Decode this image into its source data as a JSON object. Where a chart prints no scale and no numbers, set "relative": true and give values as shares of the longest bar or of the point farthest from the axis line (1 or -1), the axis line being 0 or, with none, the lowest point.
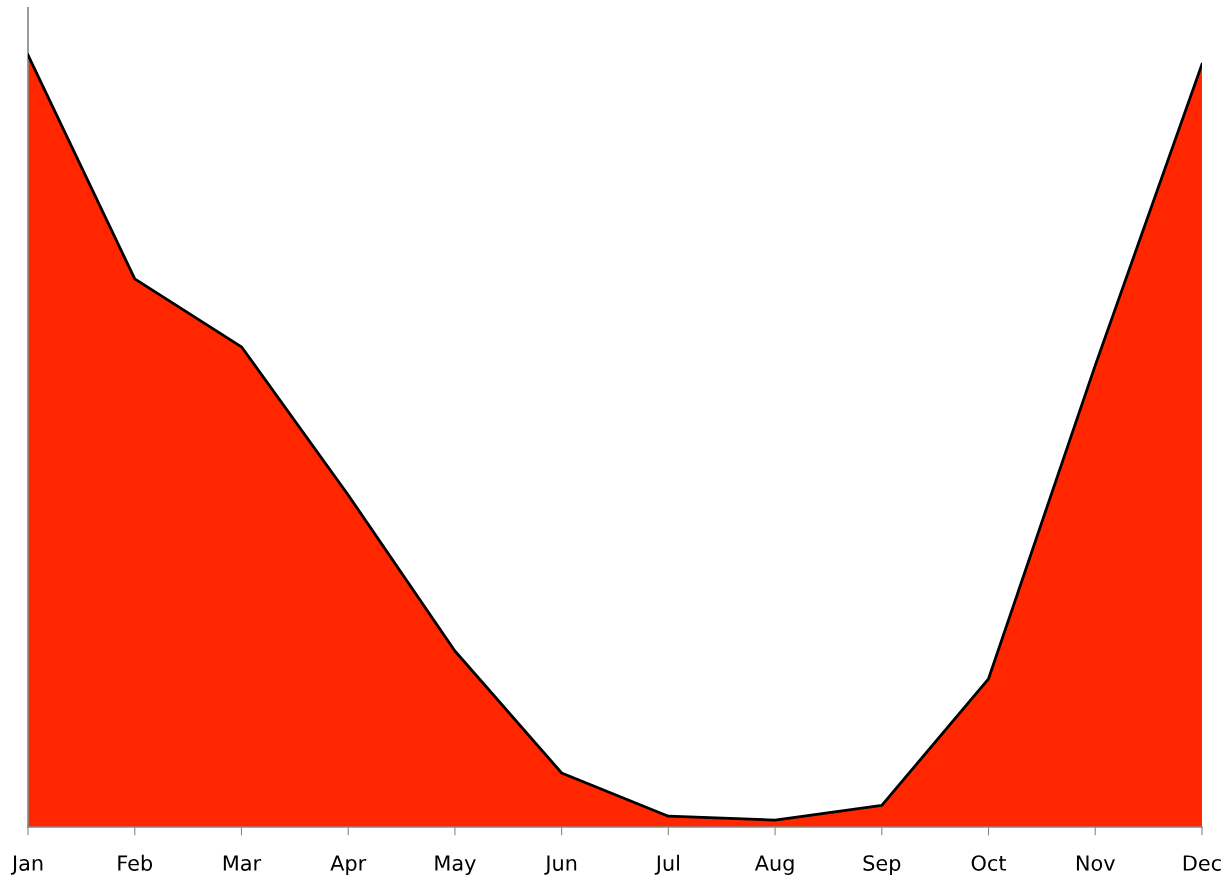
{
  "chart_data": {
    "type": "area",
    "relative": true,
    "categories": [
      "Jan",
      "Feb",
      "Mar",
      "Apr",
      "May",
      "Jun",
      "Jul",
      "Aug",
      "Sep",
      "Oct",
      "Nov",
      "Dec"
    ],
    "series": [
      {
        "color": "#ff2600",
        "values": [
          1,
          0.71,
          0.622,
          0.43,
          0.228,
          0.07,
          0.014,
          0.009,
          0.028,
          0.192,
          0.598,
          0.988
        ]
      }
    ],
    "grid": false,
    "legend": false
  }
}
